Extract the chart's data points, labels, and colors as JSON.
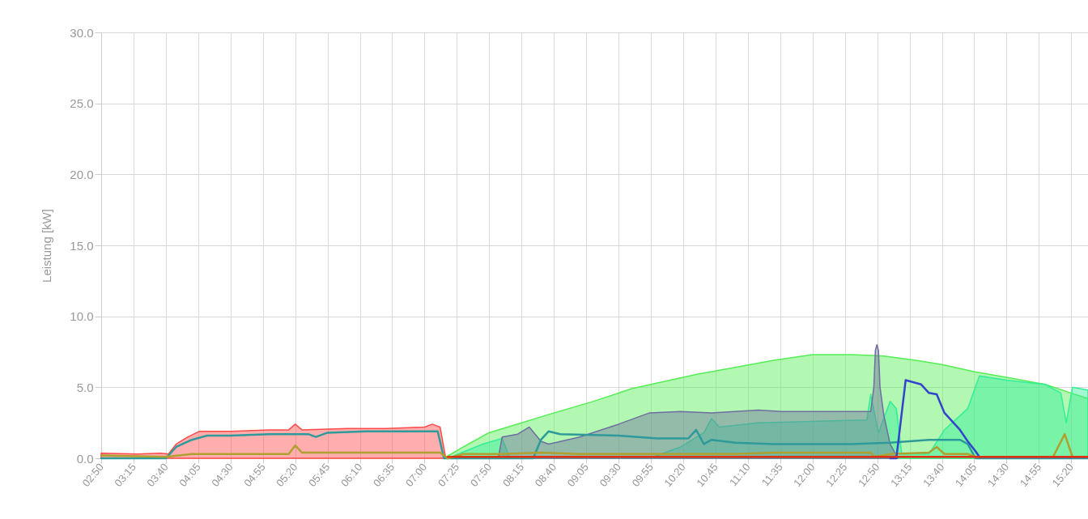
{
  "chart_data": {
    "type": "area",
    "ylabel": "Leistung [kW]",
    "grid": true,
    "xlim": [
      2.833,
      15.55
    ],
    "ylim": [
      0,
      30
    ],
    "yticks": [
      {
        "value": 0,
        "label": "0.0"
      },
      {
        "value": 5,
        "label": "5.0"
      },
      {
        "value": 10,
        "label": "10.0"
      },
      {
        "value": 15,
        "label": "15.0"
      },
      {
        "value": 20,
        "label": "20.0"
      },
      {
        "value": 25,
        "label": "25.0"
      },
      {
        "value": 30,
        "label": "30.0"
      }
    ],
    "xticks": [
      {
        "value": 2.833,
        "label": "02:50"
      },
      {
        "value": 3.25,
        "label": "03:15"
      },
      {
        "value": 3.667,
        "label": "03:40"
      },
      {
        "value": 4.083,
        "label": "04:05"
      },
      {
        "value": 4.5,
        "label": "04:30"
      },
      {
        "value": 4.917,
        "label": "04:55"
      },
      {
        "value": 5.333,
        "label": "05:20"
      },
      {
        "value": 5.75,
        "label": "05:45"
      },
      {
        "value": 6.167,
        "label": "06:10"
      },
      {
        "value": 6.583,
        "label": "06:35"
      },
      {
        "value": 7.0,
        "label": "07:00"
      },
      {
        "value": 7.417,
        "label": "07:25"
      },
      {
        "value": 7.833,
        "label": "07:50"
      },
      {
        "value": 8.25,
        "label": "08:15"
      },
      {
        "value": 8.667,
        "label": "08:40"
      },
      {
        "value": 9.083,
        "label": "09:05"
      },
      {
        "value": 9.5,
        "label": "09:30"
      },
      {
        "value": 9.917,
        "label": "09:55"
      },
      {
        "value": 10.333,
        "label": "10:20"
      },
      {
        "value": 10.75,
        "label": "10:45"
      },
      {
        "value": 11.167,
        "label": "11:10"
      },
      {
        "value": 11.583,
        "label": "11:35"
      },
      {
        "value": 12.0,
        "label": "12:00"
      },
      {
        "value": 12.417,
        "label": "12:25"
      },
      {
        "value": 12.833,
        "label": "12:50"
      },
      {
        "value": 13.25,
        "label": "13:15"
      },
      {
        "value": 13.667,
        "label": "13:40"
      },
      {
        "value": 14.083,
        "label": "14:05"
      },
      {
        "value": 14.5,
        "label": "14:30"
      },
      {
        "value": 14.917,
        "label": "14:55"
      },
      {
        "value": 15.333,
        "label": "15:20"
      }
    ],
    "series": [
      {
        "color": "#55ee55",
        "x": [
          7.25,
          7.5,
          7.83,
          8.25,
          8.67,
          9.17,
          9.67,
          10.0,
          10.5,
          11.0,
          11.5,
          12.0,
          12.5,
          12.92,
          13.33,
          13.67,
          14.08,
          14.5,
          15.0,
          15.33,
          15.55
        ],
        "values": [
          0,
          0.8,
          1.8,
          2.5,
          3.2,
          4.0,
          4.9,
          5.3,
          5.9,
          6.4,
          6.9,
          7.3,
          7.3,
          7.2,
          6.9,
          6.6,
          6.1,
          5.7,
          5.2,
          4.6,
          4.2
        ]
      },
      {
        "color": "#33ee99",
        "x": [
          7.3,
          7.75,
          8.0,
          8.1,
          9.9,
          10.3,
          10.6,
          10.7,
          10.8,
          11.3,
          12.0,
          12.7,
          12.75,
          12.85,
          13.0,
          13.08,
          13.15,
          13.5,
          13.7,
          14.0,
          14.15,
          14.5,
          15.0,
          15.2,
          15.27,
          15.35,
          15.55
        ],
        "values": [
          0,
          1.0,
          1.4,
          0,
          0,
          0.8,
          1.8,
          2.8,
          2.2,
          2.5,
          2.6,
          2.7,
          4.5,
          1.8,
          4.0,
          3.5,
          0.3,
          0.3,
          2.0,
          3.5,
          5.8,
          5.5,
          5.2,
          4.6,
          2.5,
          5.0,
          4.8
        ]
      },
      {
        "color": "#6e6ea0",
        "x": [
          7.95,
          8.0,
          8.2,
          8.35,
          8.5,
          8.6,
          9.0,
          9.5,
          9.9,
          10.3,
          10.7,
          11.0,
          11.3,
          11.6,
          12.0,
          12.75,
          12.79,
          12.81,
          12.83,
          12.85,
          12.87,
          12.92,
          13.0,
          13.1
        ],
        "values": [
          0,
          1.5,
          1.7,
          2.2,
          1.2,
          1.0,
          1.5,
          2.4,
          3.2,
          3.3,
          3.2,
          3.3,
          3.4,
          3.3,
          3.3,
          3.3,
          5.0,
          7.6,
          8.0,
          7.6,
          5.0,
          3.0,
          1.0,
          0
        ]
      },
      {
        "color": "#ff4a4a",
        "x": [
          2.833,
          3.3,
          3.6,
          3.7,
          3.8,
          3.95,
          4.1,
          4.5,
          5.0,
          5.25,
          5.333,
          5.42,
          6.0,
          6.5,
          7.0,
          7.1,
          7.2,
          7.27,
          7.3
        ],
        "values": [
          0.35,
          0.3,
          0.35,
          0.3,
          1.0,
          1.5,
          1.9,
          1.9,
          2.0,
          2.0,
          2.4,
          2.0,
          2.1,
          2.1,
          2.2,
          2.4,
          2.2,
          0.1,
          0
        ]
      },
      {
        "type": "line",
        "color": "#2e9a9a",
        "x": [
          2.833,
          3.667,
          3.8,
          4.0,
          4.2,
          4.5,
          5.0,
          5.5,
          5.6,
          5.75,
          6.25,
          7.0,
          7.17,
          7.25,
          8.4,
          8.5,
          8.6,
          8.75,
          9.5,
          10.0,
          10.4,
          10.5,
          10.6,
          10.7,
          11.0,
          11.5,
          12.5,
          13.0,
          13.5,
          13.9,
          14.0,
          14.1,
          15.55
        ],
        "values": [
          0,
          0,
          0.8,
          1.3,
          1.6,
          1.6,
          1.7,
          1.7,
          1.5,
          1.8,
          1.9,
          1.9,
          1.9,
          0,
          0,
          1.3,
          1.9,
          1.7,
          1.6,
          1.4,
          1.4,
          2.0,
          1.0,
          1.3,
          1.1,
          1.0,
          1.0,
          1.1,
          1.3,
          1.3,
          1.0,
          0,
          0
        ]
      },
      {
        "type": "line",
        "color": "#b0a030",
        "x": [
          2.833,
          3.667,
          4.0,
          5.25,
          5.333,
          5.42,
          7.0,
          7.2,
          7.3,
          7.5,
          8.0,
          8.5,
          9.0,
          10.0,
          11.0,
          11.5,
          12.75,
          12.8,
          13.0,
          13.5,
          13.6,
          13.7,
          14.0,
          14.1,
          15.1,
          15.25,
          15.35,
          15.55
        ],
        "values": [
          0.2,
          0.1,
          0.3,
          0.3,
          0.9,
          0.4,
          0.4,
          0.4,
          0,
          0.3,
          0.3,
          0.4,
          0.3,
          0.3,
          0.3,
          0.4,
          0.4,
          0.1,
          0.3,
          0.4,
          0.8,
          0.3,
          0.3,
          0.1,
          0.1,
          1.7,
          0.1,
          0.1
        ]
      },
      {
        "type": "line",
        "color": "#3344cc",
        "x": [
          13.0,
          13.08,
          13.2,
          13.4,
          13.5,
          13.6,
          13.7,
          13.9,
          14.0,
          14.1,
          14.15,
          15.55
        ],
        "values": [
          0,
          0,
          5.5,
          5.2,
          4.6,
          4.5,
          3.2,
          2.0,
          1.2,
          0.5,
          0.1,
          0.1
        ]
      },
      {
        "type": "line",
        "color": "#e03010",
        "x": [
          7.3,
          15.55
        ],
        "values": [
          0.1,
          0.1
        ]
      }
    ]
  }
}
